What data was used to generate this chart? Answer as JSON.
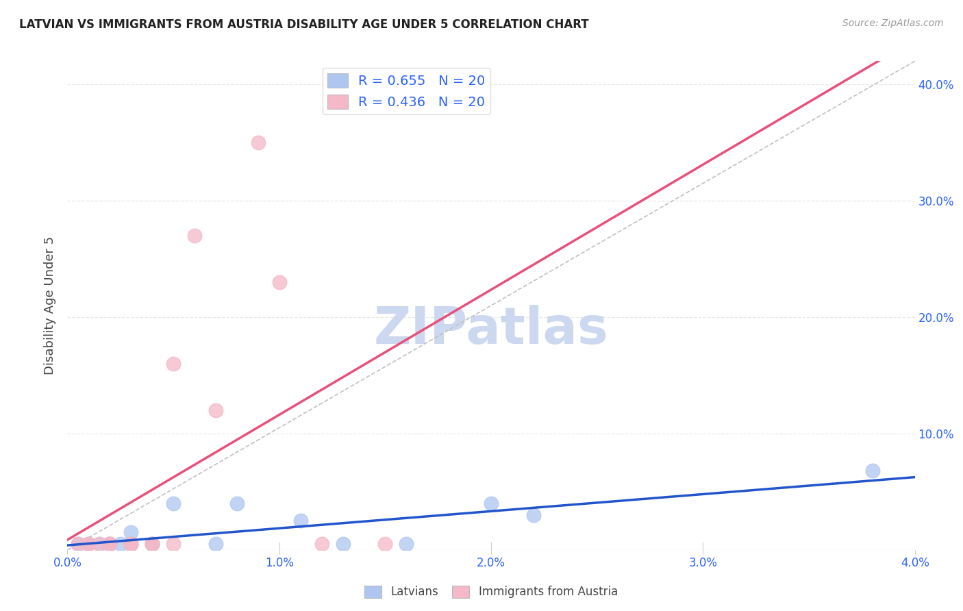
{
  "title": "LATVIAN VS IMMIGRANTS FROM AUSTRIA DISABILITY AGE UNDER 5 CORRELATION CHART",
  "source": "Source: ZipAtlas.com",
  "ylabel": "Disability Age Under 5",
  "xlabel_latvians": "Latvians",
  "xlabel_immigrants": "Immigrants from Austria",
  "xlim": [
    0.0,
    0.04
  ],
  "ylim": [
    0.0,
    0.42
  ],
  "x_ticks": [
    0.0,
    0.01,
    0.02,
    0.03,
    0.04
  ],
  "x_tick_labels": [
    "0.0%",
    "1.0%",
    "2.0%",
    "3.0%",
    "4.0%"
  ],
  "y_ticks": [
    0.0,
    0.1,
    0.2,
    0.3,
    0.4
  ],
  "y_tick_labels_right": [
    "",
    "10.0%",
    "20.0%",
    "30.0%",
    "40.0%"
  ],
  "R_latvians": 0.655,
  "N_latvians": 20,
  "R_immigrants": 0.436,
  "N_immigrants": 20,
  "latvians_color": "#aec6f0",
  "latvians_line_color": "#2255cc",
  "immigrants_color": "#f4b8c8",
  "immigrants_line_color": "#e8507a",
  "diagonal_color": "#c0c0c0",
  "legend_text_color": "#2962ff",
  "latvians_x": [
    0.0005,
    0.001,
    0.0015,
    0.002,
    0.002,
    0.0025,
    0.003,
    0.003,
    0.003,
    0.004,
    0.004,
    0.005,
    0.007,
    0.008,
    0.011,
    0.013,
    0.016,
    0.02,
    0.022,
    0.038
  ],
  "latvians_y": [
    0.005,
    0.005,
    0.005,
    0.005,
    0.005,
    0.005,
    0.015,
    0.005,
    0.005,
    0.005,
    0.005,
    0.04,
    0.005,
    0.04,
    0.025,
    0.005,
    0.005,
    0.04,
    0.03,
    0.068
  ],
  "immigrants_x": [
    0.0005,
    0.001,
    0.001,
    0.0015,
    0.002,
    0.002,
    0.002,
    0.003,
    0.003,
    0.003,
    0.004,
    0.004,
    0.005,
    0.005,
    0.006,
    0.007,
    0.009,
    0.01,
    0.012,
    0.015
  ],
  "immigrants_y": [
    0.005,
    0.005,
    0.005,
    0.005,
    0.005,
    0.005,
    0.005,
    0.005,
    0.005,
    0.005,
    0.005,
    0.005,
    0.005,
    0.16,
    0.27,
    0.12,
    0.35,
    0.23,
    0.005,
    0.005
  ],
  "background_color": "#ffffff",
  "grid_color": "#e8e8e8",
  "watermark_text": "ZIPatlas",
  "watermark_color": "#ccd8f0"
}
